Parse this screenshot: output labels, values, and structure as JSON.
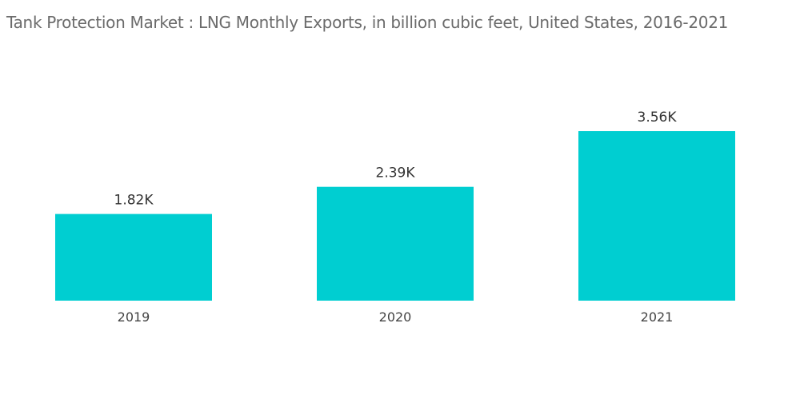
{
  "chart_data": {
    "type": "bar",
    "title": "Tank Protection Market : LNG Monthly Exports, in billion cubic feet, United States, 2016-2021",
    "categories": [
      "2019",
      "2020",
      "2021"
    ],
    "values": [
      1820,
      2390,
      3560
    ],
    "data_labels": [
      "1.82K",
      "2.39K",
      "3.56K"
    ],
    "xlabel": "",
    "ylabel": "",
    "ylim": [
      0,
      3560
    ],
    "grid": false,
    "legend": "none",
    "bar_color": "#00ced1"
  }
}
